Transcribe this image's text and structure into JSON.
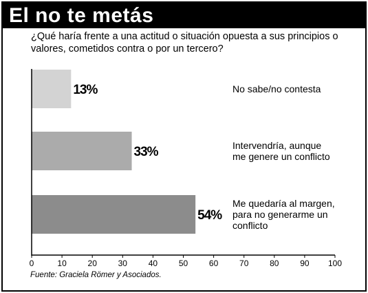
{
  "title": "El no te metás",
  "question": "¿Qué haría frente a una actitud o situación opuesta a sus principios o valores, cometidos contra o por un tercero?",
  "source": "Fuente: Graciela Römer y Asociados.",
  "chart_data": {
    "type": "bar",
    "orientation": "horizontal",
    "categories": [
      [
        "No sabe/no contesta"
      ],
      [
        "Intervendría, aunque",
        "me genere un conflicto"
      ],
      [
        "Me quedaría al margen,",
        "para no generarme un",
        "conflicto"
      ]
    ],
    "values": [
      13,
      33,
      54
    ],
    "value_labels": [
      "13%",
      "33%",
      "54%"
    ],
    "bar_colors": [
      "#d3d3d3",
      "#ababab",
      "#8c8c8c"
    ],
    "xlim": [
      0,
      100
    ],
    "xticks": [
      0,
      10,
      20,
      30,
      40,
      50,
      60,
      70,
      80,
      90,
      100
    ],
    "xlabel": "",
    "ylabel": "",
    "grid": false,
    "legend": "none"
  }
}
